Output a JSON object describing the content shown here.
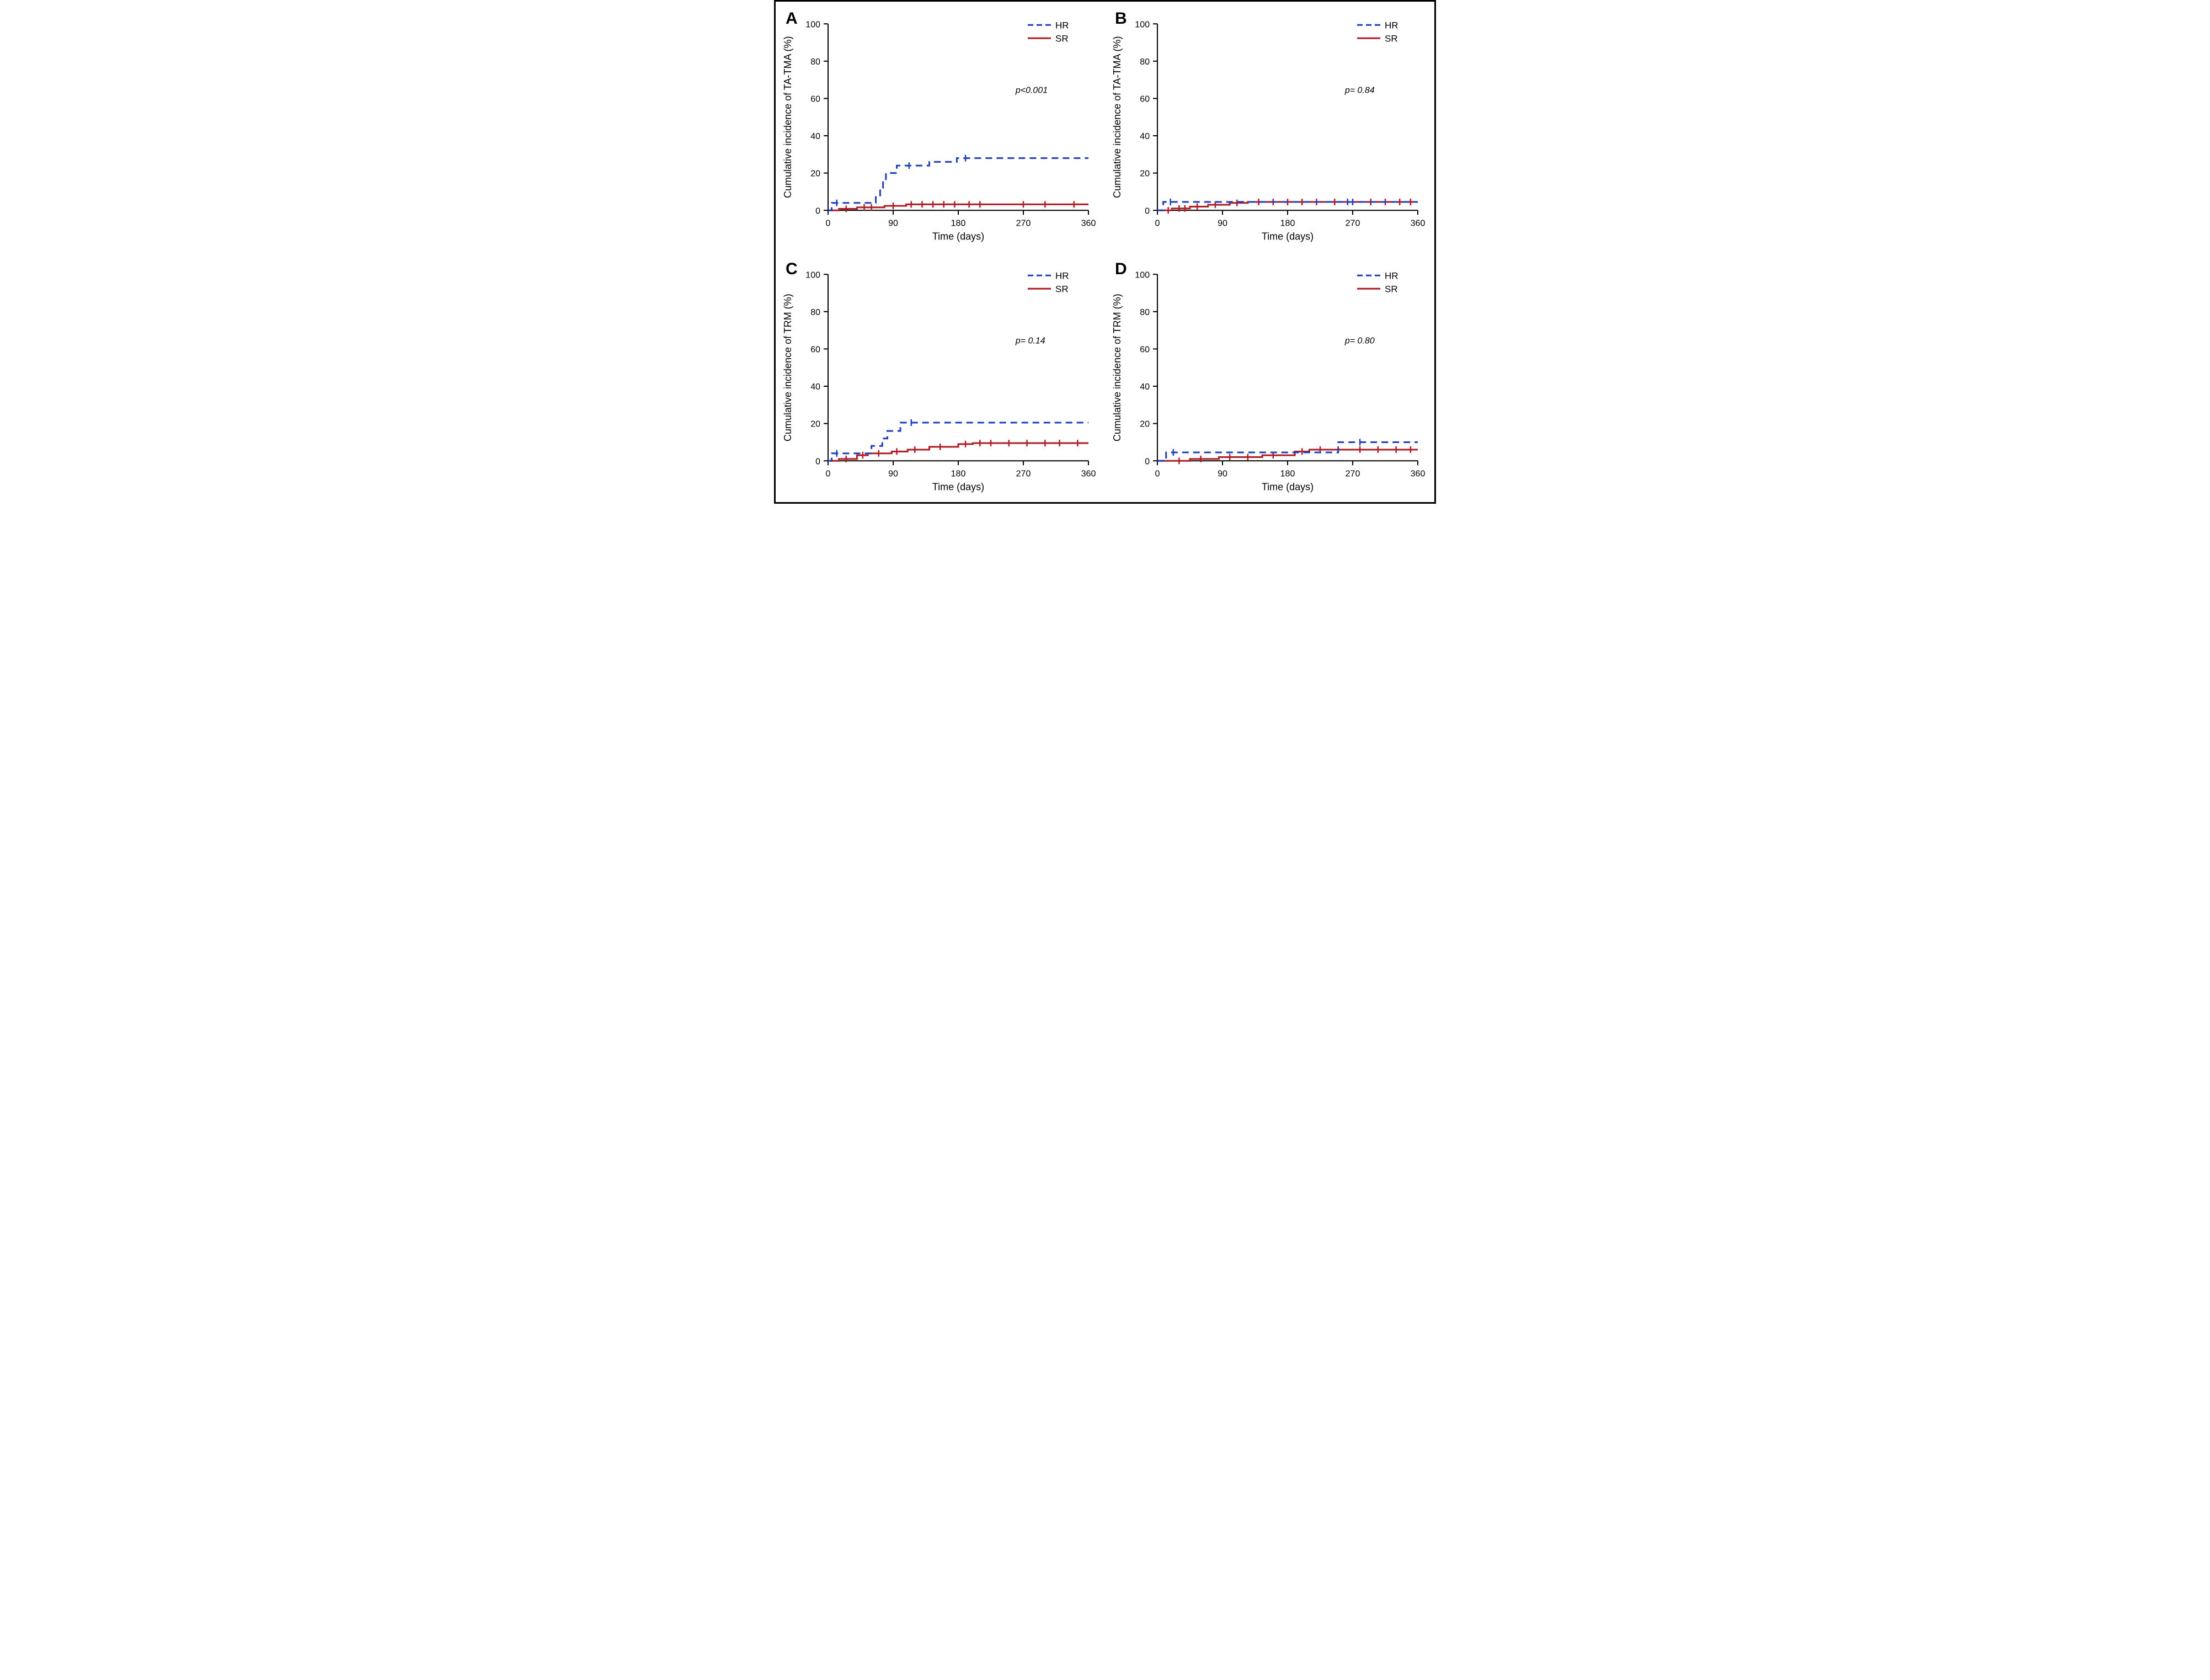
{
  "figure": {
    "border_color": "#000000",
    "background_color": "#ffffff",
    "panels": [
      "A",
      "B",
      "C",
      "D"
    ],
    "common": {
      "xlim": [
        0,
        360
      ],
      "ylim": [
        0,
        100
      ],
      "xticks": [
        0,
        90,
        180,
        270,
        360
      ],
      "yticks": [
        0,
        20,
        40,
        60,
        80,
        100
      ],
      "xlabel": "Time (days)",
      "xlabel_fontsize": 18,
      "ylabel_fontsize": 18,
      "tick_fontsize": 16,
      "axis_color": "#000000",
      "legend": {
        "items": [
          {
            "label": "HR",
            "color": "#1d3fbf",
            "dash": true
          },
          {
            "label": "SR",
            "color": "#b01c24",
            "dash": false
          }
        ],
        "fontsize": 17
      },
      "line_width": 3,
      "censor_tick_len": 6
    },
    "A": {
      "panel_label": "A",
      "ylabel": "Cumulative incidence of TA-TMA (%)",
      "pvalue": "p<0.001",
      "HR_line": [
        [
          0,
          0
        ],
        [
          5,
          0
        ],
        [
          5,
          4
        ],
        [
          66,
          4
        ],
        [
          66,
          8
        ],
        [
          72,
          8
        ],
        [
          72,
          12
        ],
        [
          76,
          12
        ],
        [
          76,
          16
        ],
        [
          80,
          16
        ],
        [
          80,
          20
        ],
        [
          95,
          20
        ],
        [
          95,
          24
        ],
        [
          140,
          24
        ],
        [
          140,
          26
        ],
        [
          178,
          26
        ],
        [
          178,
          28
        ],
        [
          360,
          28
        ]
      ],
      "HR_censor": [
        [
          12,
          4
        ],
        [
          112,
          24
        ],
        [
          190,
          28
        ]
      ],
      "SR_line": [
        [
          0,
          0
        ],
        [
          15,
          0
        ],
        [
          15,
          0.8
        ],
        [
          40,
          0.8
        ],
        [
          40,
          1.6
        ],
        [
          78,
          1.6
        ],
        [
          78,
          2.4
        ],
        [
          108,
          2.4
        ],
        [
          108,
          3.2
        ],
        [
          360,
          3.2
        ]
      ],
      "SR_censor": [
        [
          25,
          0.8
        ],
        [
          50,
          1.6
        ],
        [
          60,
          1.6
        ],
        [
          90,
          2.4
        ],
        [
          115,
          3.2
        ],
        [
          130,
          3.2
        ],
        [
          145,
          3.2
        ],
        [
          160,
          3.2
        ],
        [
          175,
          3.2
        ],
        [
          195,
          3.2
        ],
        [
          210,
          3.2
        ],
        [
          270,
          3.2
        ],
        [
          300,
          3.2
        ],
        [
          340,
          3.2
        ]
      ]
    },
    "B": {
      "panel_label": "B",
      "ylabel": "Cumulative incidence of TA-TMA (%)",
      "pvalue": "p= 0.84",
      "HR_line": [
        [
          0,
          0
        ],
        [
          8,
          0
        ],
        [
          8,
          4.5
        ],
        [
          360,
          4.5
        ]
      ],
      "HR_censor": [
        [
          18,
          4.5
        ],
        [
          263,
          4.5
        ],
        [
          270,
          4.5
        ]
      ],
      "SR_line": [
        [
          0,
          0
        ],
        [
          20,
          0
        ],
        [
          20,
          1
        ],
        [
          45,
          1
        ],
        [
          45,
          2
        ],
        [
          70,
          2
        ],
        [
          70,
          3
        ],
        [
          100,
          3
        ],
        [
          100,
          4
        ],
        [
          125,
          4
        ],
        [
          125,
          4.5
        ],
        [
          360,
          4.5
        ]
      ],
      "SR_censor": [
        [
          15,
          0
        ],
        [
          30,
          1
        ],
        [
          38,
          1
        ],
        [
          55,
          2
        ],
        [
          80,
          3
        ],
        [
          110,
          4
        ],
        [
          140,
          4.5
        ],
        [
          160,
          4.5
        ],
        [
          180,
          4.5
        ],
        [
          200,
          4.5
        ],
        [
          220,
          4.5
        ],
        [
          245,
          4.5
        ],
        [
          295,
          4.5
        ],
        [
          315,
          4.5
        ],
        [
          335,
          4.5
        ],
        [
          350,
          4.5
        ]
      ]
    },
    "C": {
      "panel_label": "C",
      "ylabel": "Cumulative incidence of TRM (%)",
      "pvalue": "p= 0.14",
      "HR_line": [
        [
          0,
          0
        ],
        [
          5,
          0
        ],
        [
          5,
          4
        ],
        [
          60,
          4
        ],
        [
          60,
          8
        ],
        [
          75,
          8
        ],
        [
          75,
          12
        ],
        [
          82,
          12
        ],
        [
          82,
          16
        ],
        [
          100,
          16
        ],
        [
          100,
          20.5
        ],
        [
          360,
          20.5
        ]
      ],
      "HR_censor": [
        [
          12,
          4
        ],
        [
          115,
          20.5
        ]
      ],
      "SR_line": [
        [
          0,
          0
        ],
        [
          15,
          0
        ],
        [
          15,
          1
        ],
        [
          40,
          1
        ],
        [
          40,
          3
        ],
        [
          55,
          3
        ],
        [
          55,
          4
        ],
        [
          88,
          4
        ],
        [
          88,
          5
        ],
        [
          110,
          5
        ],
        [
          110,
          6
        ],
        [
          140,
          6
        ],
        [
          140,
          7.5
        ],
        [
          180,
          7.5
        ],
        [
          180,
          9
        ],
        [
          200,
          9
        ],
        [
          200,
          9.5
        ],
        [
          360,
          9.5
        ]
      ],
      "SR_censor": [
        [
          25,
          1
        ],
        [
          48,
          3
        ],
        [
          70,
          4
        ],
        [
          95,
          5
        ],
        [
          120,
          6
        ],
        [
          155,
          7.5
        ],
        [
          190,
          9
        ],
        [
          210,
          9.5
        ],
        [
          225,
          9.5
        ],
        [
          250,
          9.5
        ],
        [
          275,
          9.5
        ],
        [
          300,
          9.5
        ],
        [
          320,
          9.5
        ],
        [
          345,
          9.5
        ]
      ]
    },
    "D": {
      "panel_label": "D",
      "ylabel": "Cumulative incidence of TRM (%)",
      "pvalue": "p= 0.80",
      "HR_line": [
        [
          0,
          0
        ],
        [
          12,
          0
        ],
        [
          12,
          4.5
        ],
        [
          250,
          4.5
        ],
        [
          250,
          10
        ],
        [
          360,
          10
        ]
      ],
      "HR_censor": [
        [
          22,
          4.5
        ],
        [
          280,
          10
        ]
      ],
      "SR_line": [
        [
          0,
          0
        ],
        [
          45,
          0
        ],
        [
          45,
          1
        ],
        [
          85,
          1
        ],
        [
          85,
          2
        ],
        [
          145,
          2
        ],
        [
          145,
          3
        ],
        [
          190,
          3
        ],
        [
          190,
          5
        ],
        [
          210,
          5
        ],
        [
          210,
          6
        ],
        [
          360,
          6
        ]
      ],
      "SR_censor": [
        [
          30,
          0
        ],
        [
          60,
          1
        ],
        [
          100,
          2
        ],
        [
          125,
          2
        ],
        [
          160,
          3
        ],
        [
          200,
          5
        ],
        [
          225,
          6
        ],
        [
          250,
          6
        ],
        [
          280,
          6
        ],
        [
          305,
          6
        ],
        [
          330,
          6
        ],
        [
          350,
          6
        ]
      ]
    }
  }
}
